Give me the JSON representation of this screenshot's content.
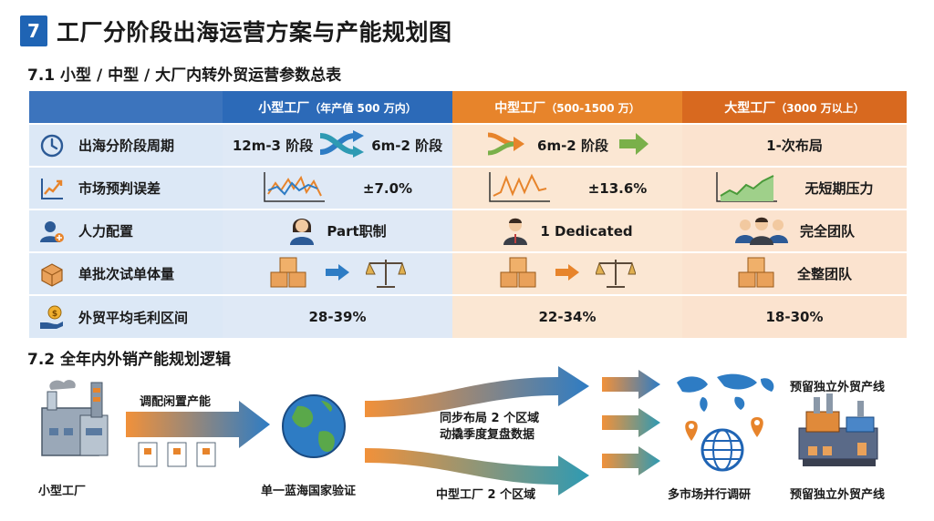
{
  "header": {
    "number": "7",
    "title": "工厂分阶段出海运营方案与产能规划图"
  },
  "section1": {
    "title": "7.1 小型 / 中型 / 大厂内转外贸运营参数总表",
    "columns": [
      {
        "name": "小型工厂",
        "note": "（年产值 500 万内）"
      },
      {
        "name": "中型工厂",
        "note": "（500-1500 万）"
      },
      {
        "name": "大型工厂",
        "note": "（3000 万以上）"
      }
    ],
    "rows": [
      {
        "label": "出海分阶段周期",
        "icon": "clock-icon",
        "small_a": "12m-3 阶段",
        "small_b": "6m-2 阶段",
        "mid": "6m-2 阶段",
        "large": "1-次布局"
      },
      {
        "label": "市场预判误差",
        "icon": "trend-chart-icon",
        "small": "±7.0%",
        "mid": "±13.6%",
        "large": "无短期压力"
      },
      {
        "label": "人力配置",
        "icon": "person-add-icon",
        "small": "Part职制",
        "mid": "1 Dedicated",
        "large": "完全团队"
      },
      {
        "label": "单批次试单体量",
        "icon": "box-icon",
        "small": "",
        "mid": "",
        "large": "全整团队"
      },
      {
        "label": "外贸平均毛利区间",
        "icon": "money-hand-icon",
        "small": "28-39%",
        "mid": "22-34%",
        "large": "18-30%"
      }
    ]
  },
  "section2": {
    "title": "7.2 全年内外销产能规划逻辑",
    "labels": {
      "small_factory": "小型工厂",
      "idle_capacity": "调配闲置产能",
      "single_country": "单一蓝海国家验证",
      "sync_line1": "同步布局 2 个区域",
      "sync_line2": "动撬季度复盘数据",
      "mid_factory": "中型工厂 2 个区域",
      "multi_market": "多市场并行调研",
      "reserve_top": "预留独立外贸产线",
      "reserve_bottom": "预留独立外贸产线"
    }
  },
  "colors": {
    "blue": "#1f64b4",
    "orange": "#e7842b",
    "teal": "#2e9ab3",
    "light_blue": "#dfe9f6",
    "light_orange": "#fbe7d3"
  }
}
